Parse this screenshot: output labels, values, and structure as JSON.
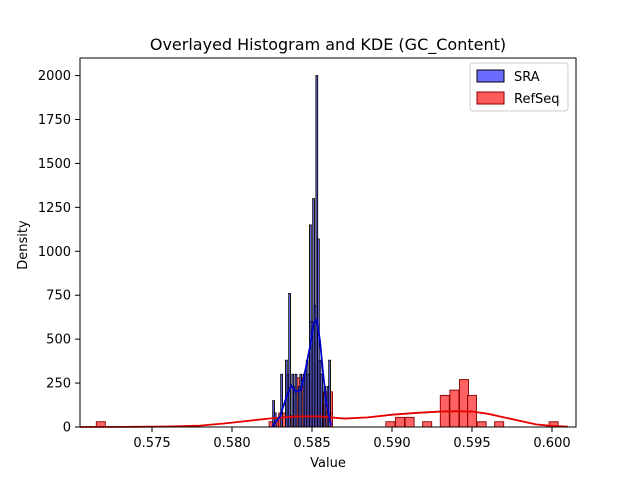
{
  "chart_data": {
    "type": "bar",
    "title": "Overlayed Histogram and KDE (GC_Content)",
    "xlabel": "Value",
    "ylabel": "Density",
    "xlim": [
      0.5705,
      0.6015
    ],
    "ylim": [
      0,
      2100
    ],
    "x_ticks": [
      0.575,
      0.58,
      0.585,
      0.59,
      0.595,
      0.6
    ],
    "x_tick_labels": [
      "0.575",
      "0.580",
      "0.585",
      "0.590",
      "0.595",
      "0.600"
    ],
    "y_ticks": [
      0,
      250,
      500,
      750,
      1000,
      1250,
      1500,
      1750,
      2000
    ],
    "y_tick_labels": [
      "0",
      "250",
      "500",
      "750",
      "1000",
      "1250",
      "1500",
      "1750",
      "2000"
    ],
    "legend": {
      "placement": "top-right",
      "entries": [
        {
          "name": "SRA",
          "color": "#6b6bff"
        },
        {
          "name": "RefSeq",
          "color": "#ff5a5a"
        }
      ]
    },
    "series": [
      {
        "name": "RefSeq",
        "kind": "histogram",
        "color": "#ff5a5a",
        "edge_color": "#8a0000",
        "bin_width": 0.000565,
        "bins": [
          {
            "x": 0.5718,
            "y": 30
          },
          {
            "x": 0.5826,
            "y": 30
          },
          {
            "x": 0.5832,
            "y": 80
          },
          {
            "x": 0.5838,
            "y": 65
          },
          {
            "x": 0.5843,
            "y": 280
          },
          {
            "x": 0.5849,
            "y": 250
          },
          {
            "x": 0.5854,
            "y": 120
          },
          {
            "x": 0.586,
            "y": 200
          },
          {
            "x": 0.586,
            "y": 80
          },
          {
            "x": 0.5899,
            "y": 30
          },
          {
            "x": 0.5905,
            "y": 55
          },
          {
            "x": 0.5911,
            "y": 55
          },
          {
            "x": 0.5922,
            "y": 30
          },
          {
            "x": 0.5933,
            "y": 180
          },
          {
            "x": 0.5939,
            "y": 210
          },
          {
            "x": 0.5945,
            "y": 270
          },
          {
            "x": 0.595,
            "y": 180
          },
          {
            "x": 0.5956,
            "y": 30
          },
          {
            "x": 0.5967,
            "y": 30
          },
          {
            "x": 0.6001,
            "y": 30
          }
        ],
        "kde": [
          [
            0.5705,
            0
          ],
          [
            0.574,
            1
          ],
          [
            0.576,
            3
          ],
          [
            0.578,
            8
          ],
          [
            0.5795,
            20
          ],
          [
            0.581,
            35
          ],
          [
            0.5825,
            50
          ],
          [
            0.584,
            60
          ],
          [
            0.5855,
            60
          ],
          [
            0.587,
            48
          ],
          [
            0.5885,
            55
          ],
          [
            0.59,
            70
          ],
          [
            0.5915,
            80
          ],
          [
            0.593,
            88
          ],
          [
            0.594,
            90
          ],
          [
            0.595,
            88
          ],
          [
            0.596,
            75
          ],
          [
            0.597,
            55
          ],
          [
            0.598,
            35
          ],
          [
            0.599,
            15
          ],
          [
            0.6,
            6
          ],
          [
            0.601,
            2
          ]
        ]
      },
      {
        "name": "SRA",
        "kind": "histogram",
        "color": "#6b6bff",
        "edge_color": "#000000",
        "bin_width": 0.00011,
        "bins": [
          {
            "x": 0.5826,
            "y": 150
          },
          {
            "x": 0.5827,
            "y": 80
          },
          {
            "x": 0.5831,
            "y": 300
          },
          {
            "x": 0.5834,
            "y": 380
          },
          {
            "x": 0.5835,
            "y": 300
          },
          {
            "x": 0.5836,
            "y": 760
          },
          {
            "x": 0.5838,
            "y": 300
          },
          {
            "x": 0.5839,
            "y": 230
          },
          {
            "x": 0.584,
            "y": 300
          },
          {
            "x": 0.5842,
            "y": 230
          },
          {
            "x": 0.5843,
            "y": 300
          },
          {
            "x": 0.5845,
            "y": 300
          },
          {
            "x": 0.5846,
            "y": 300
          },
          {
            "x": 0.5847,
            "y": 380
          },
          {
            "x": 0.5848,
            "y": 300
          },
          {
            "x": 0.5849,
            "y": 1150
          },
          {
            "x": 0.585,
            "y": 600
          },
          {
            "x": 0.5851,
            "y": 1300
          },
          {
            "x": 0.5852,
            "y": 690
          },
          {
            "x": 0.5853,
            "y": 2000
          },
          {
            "x": 0.5854,
            "y": 1070
          },
          {
            "x": 0.5855,
            "y": 380
          },
          {
            "x": 0.5856,
            "y": 300
          },
          {
            "x": 0.5858,
            "y": 230
          },
          {
            "x": 0.586,
            "y": 230
          },
          {
            "x": 0.5861,
            "y": 380
          }
        ],
        "kde": [
          [
            0.5825,
            0
          ],
          [
            0.583,
            60
          ],
          [
            0.5834,
            170
          ],
          [
            0.5837,
            235
          ],
          [
            0.584,
            200
          ],
          [
            0.5843,
            210
          ],
          [
            0.5846,
            330
          ],
          [
            0.5849,
            470
          ],
          [
            0.5851,
            590
          ],
          [
            0.5853,
            610
          ],
          [
            0.5855,
            490
          ],
          [
            0.5857,
            300
          ],
          [
            0.5859,
            140
          ],
          [
            0.5861,
            50
          ],
          [
            0.5862,
            10
          ]
        ]
      }
    ]
  }
}
